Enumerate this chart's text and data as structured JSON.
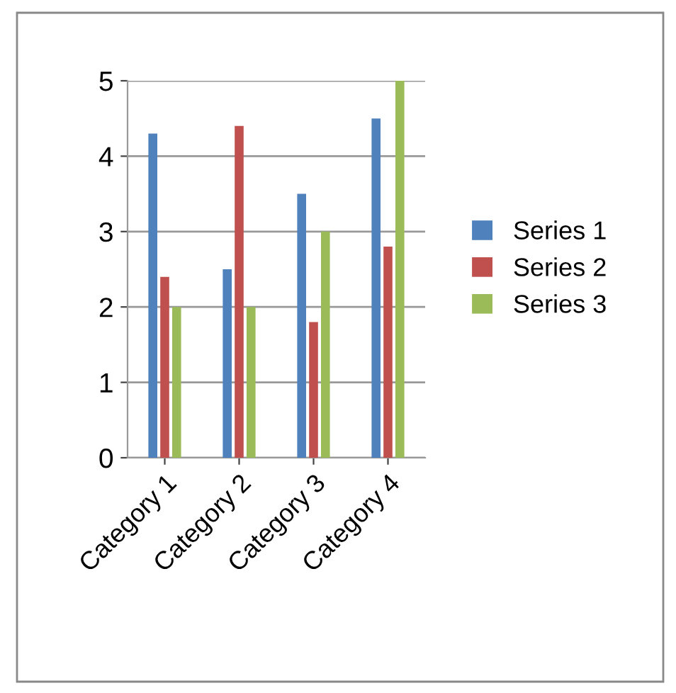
{
  "chart_data": {
    "type": "bar",
    "categories": [
      "Category 1",
      "Category 2",
      "Category 3",
      "Category 4"
    ],
    "series": [
      {
        "name": "Series 1",
        "color": "#4f81bd",
        "values": [
          4.3,
          2.5,
          3.5,
          4.5
        ]
      },
      {
        "name": "Series 2",
        "color": "#c0504d",
        "values": [
          2.4,
          4.4,
          1.8,
          2.8
        ]
      },
      {
        "name": "Series 3",
        "color": "#9bbb59",
        "values": [
          2,
          2,
          3,
          5
        ]
      }
    ],
    "ylim": [
      0,
      5
    ],
    "yticks": [
      0,
      1,
      2,
      3,
      4,
      5
    ],
    "grid": "y",
    "legend": "right"
  }
}
